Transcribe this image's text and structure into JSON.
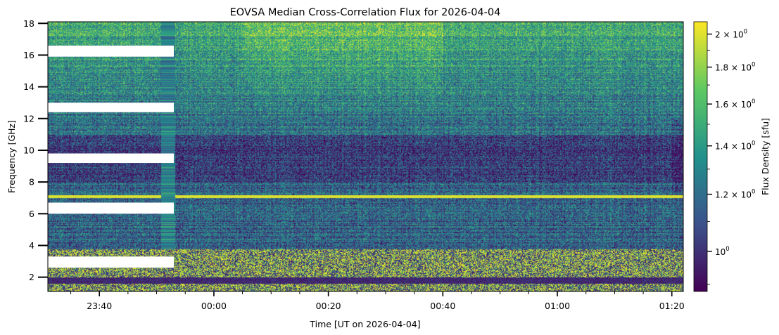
{
  "chart_data": {
    "type": "heatmap",
    "title": "EOVSA Median Cross-Correlation Flux for 2026-04-04",
    "xlabel": "Time [UT on 2026-04-04]",
    "ylabel": "Frequency [GHz]",
    "colorbar_label": "Flux Density [sfu]",
    "colormap": "viridis",
    "colormap_stops": [
      "#440154",
      "#3b528b",
      "#21918c",
      "#5ec962",
      "#fde725"
    ],
    "x_range": [
      "23:31",
      "01:22"
    ],
    "x_ticks": [
      "23:40",
      "00:00",
      "00:20",
      "00:40",
      "01:00",
      "01:20"
    ],
    "y_range": [
      1.1,
      18.1
    ],
    "y_ticks": [
      2,
      4,
      6,
      8,
      10,
      12,
      14,
      16,
      18
    ],
    "colorbar_scale": "log",
    "colorbar_range": [
      0.88,
      2.08
    ],
    "colorbar_ticks": [
      {
        "value": 1.0,
        "label": "10",
        "exp": "0",
        "mult": ""
      },
      {
        "value": 1.2,
        "label": "10",
        "exp": "0",
        "mult": "1.2 × "
      },
      {
        "value": 1.4,
        "label": "10",
        "exp": "0",
        "mult": "1.4 × "
      },
      {
        "value": 1.6,
        "label": "10",
        "exp": "0",
        "mult": "1.6 × "
      },
      {
        "value": 1.8,
        "label": "10",
        "exp": "0",
        "mult": "1.8 × "
      },
      {
        "value": 2.0,
        "label": "10",
        "exp": "0",
        "mult": "2 × "
      }
    ],
    "data_gaps": [
      {
        "t_start": "23:31",
        "t_end": "23:53",
        "f_low": 2.6,
        "f_high": 3.3
      },
      {
        "t_start": "23:31",
        "t_end": "23:53",
        "f_low": 6.0,
        "f_high": 6.7
      },
      {
        "t_start": "23:31",
        "t_end": "23:53",
        "f_low": 9.2,
        "f_high": 9.8
      },
      {
        "t_start": "23:31",
        "t_end": "23:53",
        "f_low": 12.4,
        "f_high": 13.0
      },
      {
        "t_start": "23:31",
        "t_end": "23:53",
        "f_low": 15.9,
        "f_high": 16.6
      }
    ]
  }
}
